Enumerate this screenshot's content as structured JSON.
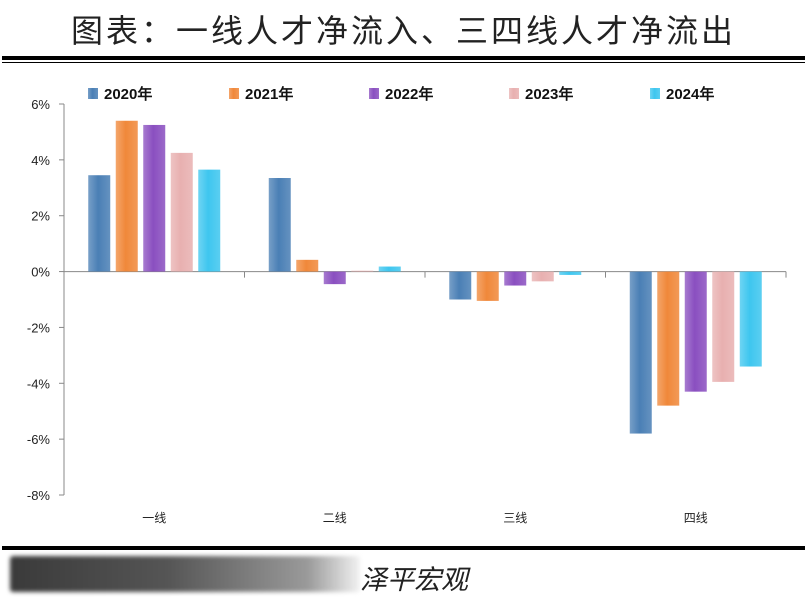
{
  "title": "图表：一线人才净流入、三四线人才净流出",
  "source_label": "泽平宏观",
  "chart_data": {
    "type": "bar",
    "categories": [
      "一线",
      "二线",
      "三线",
      "四线"
    ],
    "series": [
      {
        "name": "2020年",
        "color": "#4a7fb5",
        "values": [
          3.45,
          3.35,
          -1.0,
          -5.8
        ]
      },
      {
        "name": "2021年",
        "color": "#f0883a",
        "values": [
          5.4,
          0.42,
          -1.05,
          -4.8
        ]
      },
      {
        "name": "2022年",
        "color": "#8a4fc0",
        "values": [
          5.25,
          -0.45,
          -0.5,
          -4.3
        ]
      },
      {
        "name": "2023年",
        "color": "#e8b0b0",
        "values": [
          4.25,
          0.03,
          -0.35,
          -3.95
        ]
      },
      {
        "name": "2024年",
        "color": "#3ec6ef",
        "values": [
          3.65,
          0.18,
          -0.12,
          -3.4
        ]
      }
    ],
    "ylim": [
      -8,
      6
    ],
    "yticks": [
      -8,
      -6,
      -4,
      -2,
      0,
      2,
      4,
      6
    ],
    "ytick_format": "percent",
    "legend_position": "top",
    "grid": false
  }
}
